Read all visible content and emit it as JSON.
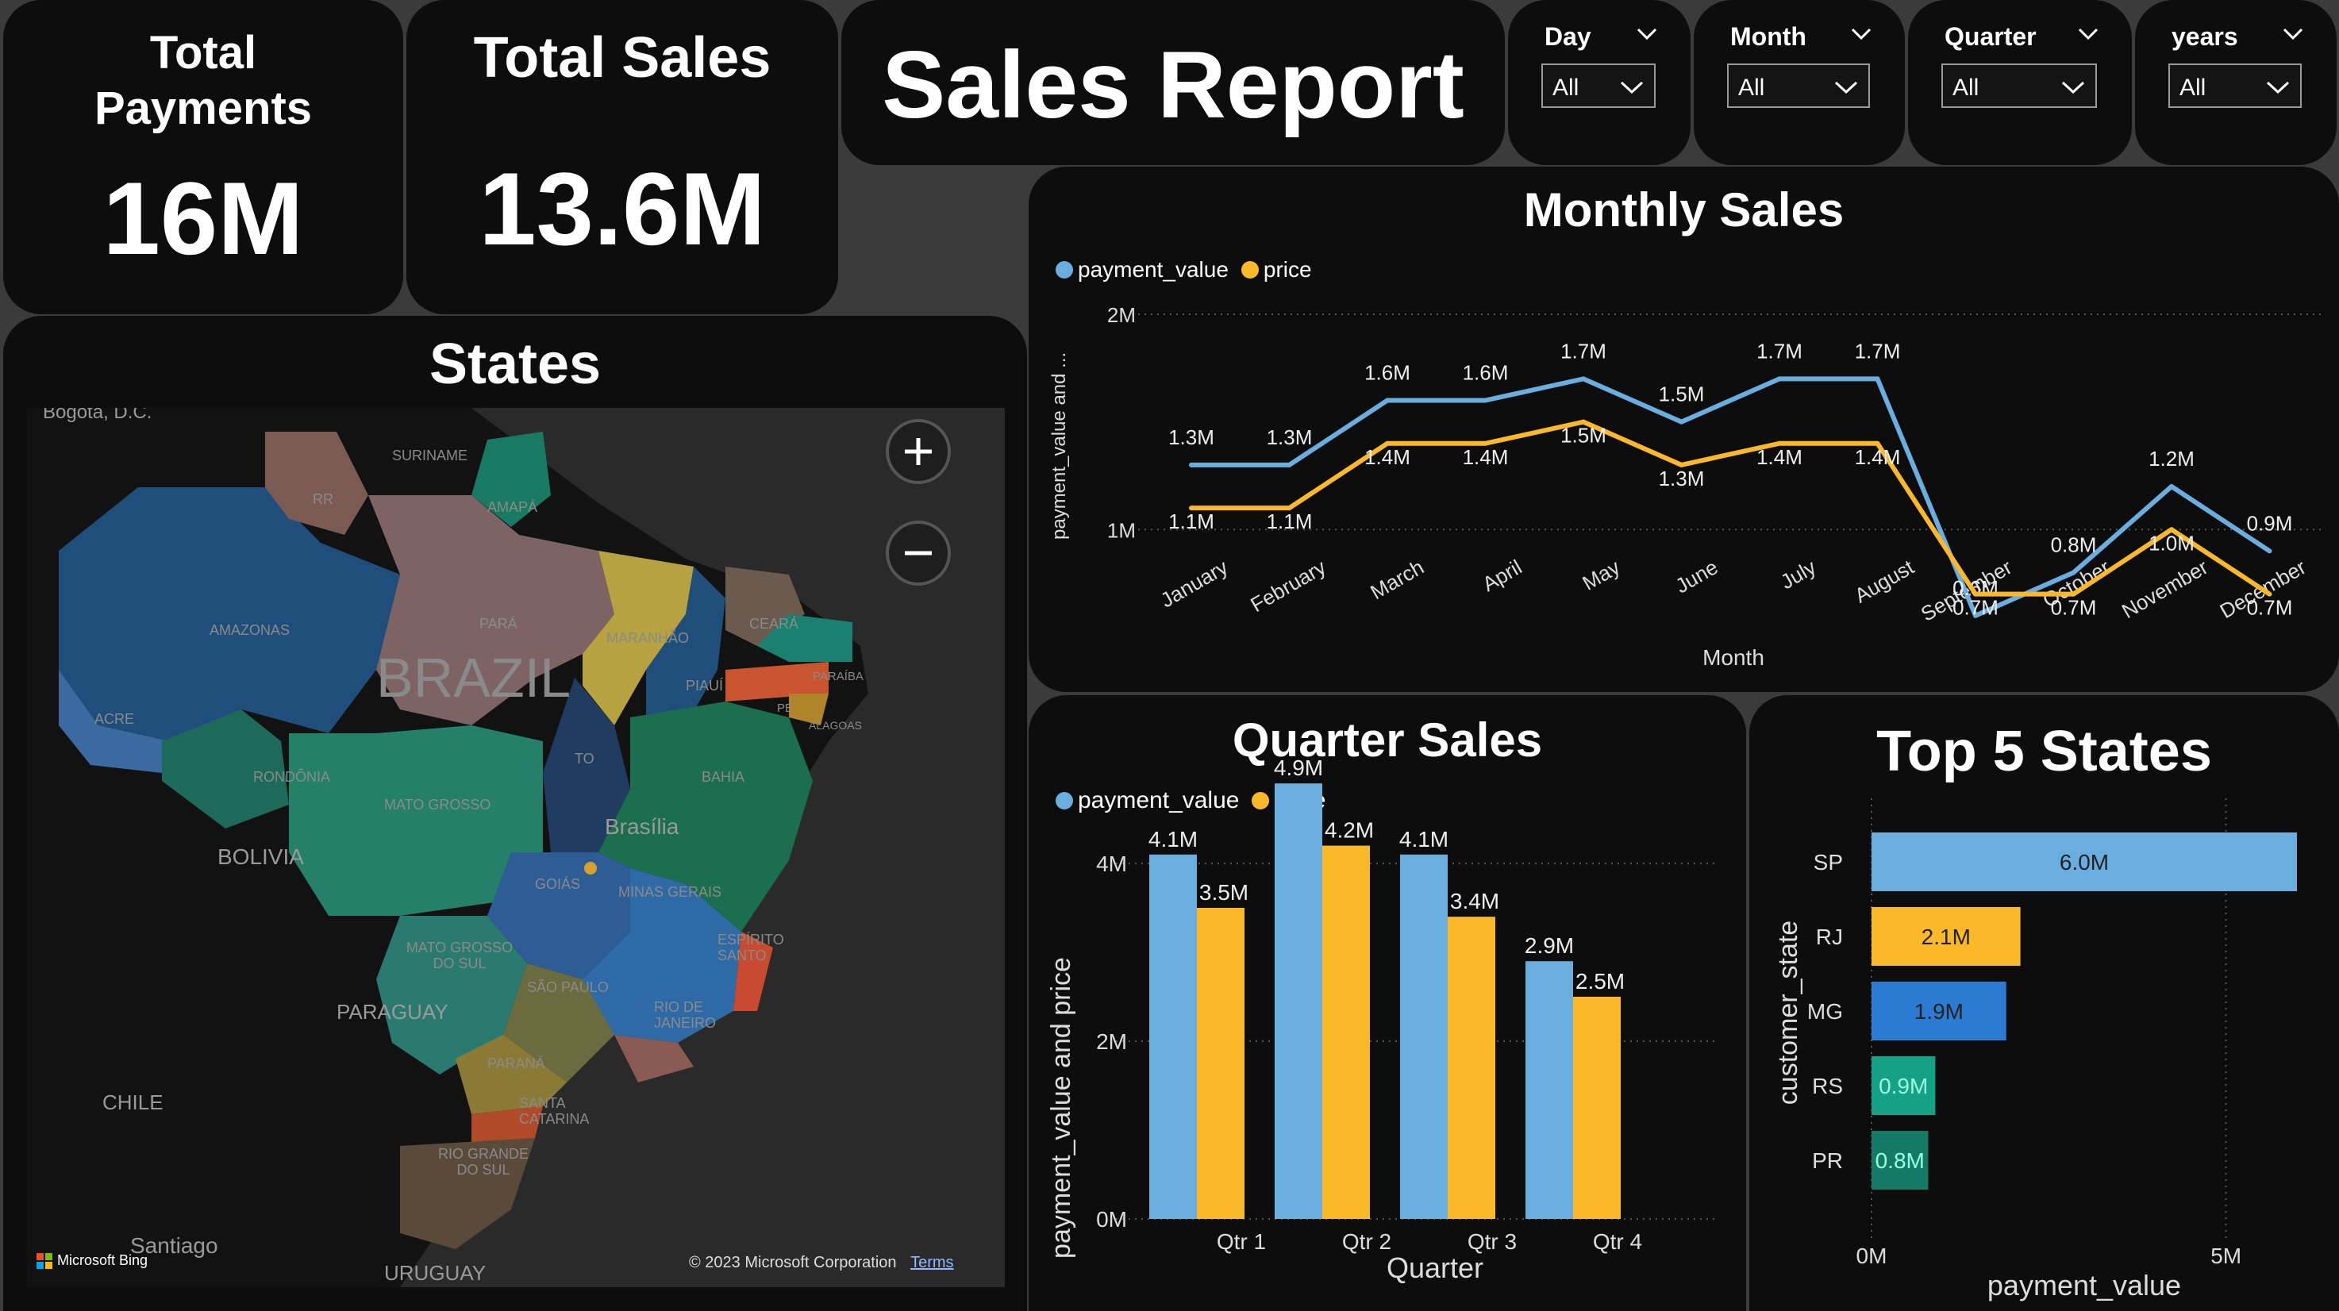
{
  "kpis": {
    "total_payments": {
      "label_line1": "Total",
      "label_line2": "Payments",
      "value": "16M"
    },
    "total_sales": {
      "label": "Total Sales",
      "value": "13.6M"
    }
  },
  "report_title": "Sales Report",
  "slicers": [
    {
      "label": "Day",
      "value": "All"
    },
    {
      "label": "Month",
      "value": "All"
    },
    {
      "label": "Quarter",
      "value": "All"
    },
    {
      "label": "years",
      "value": "All"
    }
  ],
  "states_map": {
    "title": "States",
    "country_label": "BRAZIL",
    "place_labels": [
      "Bogota, D.C.",
      "SURINAME",
      "RR",
      "AMAPÁ",
      "AMAZONAS",
      "PARÁ",
      "MARANHÃO",
      "CEARÁ",
      "ACRE",
      "PIAUÍ",
      "PARAÍBA",
      "PE",
      "ALAGOAS",
      "TO",
      "RONDÔNIA",
      "BAHIA",
      "MATO GROSSO",
      "Brasília",
      "BOLIVIA",
      "GOIÁS",
      "MINAS GERAIS",
      "ESPÍRITO SANTO",
      "MATO GROSSO DO SUL",
      "SÃO PAULO",
      "RIO DE JANEIRO",
      "PARAGUAY",
      "PARANÁ",
      "SANTA CATARINA",
      "CHILE",
      "RIO GRANDE DO SUL",
      "Santiago",
      "URUGUAY"
    ],
    "attribution": "© 2023 Microsoft Corporation",
    "terms_link": "Terms",
    "bing_logo": "Microsoft Bing",
    "colors": {
      "map_bg": "#2a2a2a"
    }
  },
  "colors": {
    "payment_value": "#6aaee0",
    "price": "#fbb829",
    "mg": "#2c7bd2",
    "rs": "#16a085",
    "pr": "#147a65"
  },
  "chart_data": [
    {
      "type": "line",
      "title": "Monthly Sales",
      "xlabel": "Month",
      "ylabel": "payment_value and ...",
      "categories": [
        "January",
        "February",
        "March",
        "April",
        "May",
        "June",
        "July",
        "August",
        "September",
        "October",
        "November",
        "December"
      ],
      "series": [
        {
          "name": "payment_value",
          "values": [
            1.3,
            1.3,
            1.6,
            1.6,
            1.7,
            1.5,
            1.7,
            1.7,
            0.6,
            0.8,
            1.2,
            0.9
          ],
          "labels": [
            "1.3M",
            "1.3M",
            "1.6M",
            "1.6M",
            "1.7M",
            "1.5M",
            "1.7M",
            "1.7M",
            "0.6M",
            "0.8M",
            "1.2M",
            "0.9M"
          ]
        },
        {
          "name": "price",
          "values": [
            1.1,
            1.1,
            1.4,
            1.4,
            1.5,
            1.3,
            1.4,
            1.4,
            0.7,
            0.7,
            1.0,
            0.7
          ],
          "labels": [
            "1.1M",
            "1.1M",
            "1.4M",
            "1.4M",
            "1.5M",
            "1.3M",
            "1.4M",
            "1.4M",
            "0.7M",
            "0.7M",
            "1.0M",
            "0.7M"
          ]
        }
      ],
      "yticks": [
        "1M",
        "2M"
      ],
      "ylim": [
        0.4,
        2.0
      ],
      "legend": "top-left",
      "grid": true
    },
    {
      "type": "bar",
      "title": "Quarter Sales",
      "xlabel": "Quarter",
      "ylabel": "payment_value and price",
      "categories": [
        "Qtr 1",
        "Qtr 2",
        "Qtr 3",
        "Qtr 4"
      ],
      "series": [
        {
          "name": "payment_value",
          "values": [
            4.1,
            4.9,
            4.1,
            2.9
          ],
          "labels": [
            "4.1M",
            "4.9M",
            "4.1M",
            "2.9M"
          ]
        },
        {
          "name": "price",
          "values": [
            3.5,
            4.2,
            3.4,
            2.5
          ],
          "labels": [
            "3.5M",
            "4.2M",
            "3.4M",
            "2.5M"
          ]
        }
      ],
      "yticks": [
        "0M",
        "2M",
        "4M"
      ],
      "ylim": [
        0,
        5
      ],
      "legend": "top-left",
      "grid": true
    },
    {
      "type": "bar",
      "orientation": "horizontal",
      "title": "Top 5 States",
      "xlabel": "payment_value",
      "ylabel": "customer_state",
      "categories": [
        "SP",
        "RJ",
        "MG",
        "RS",
        "PR"
      ],
      "values": [
        6.0,
        2.1,
        1.9,
        0.9,
        0.8
      ],
      "labels": [
        "6.0M",
        "2.1M",
        "1.9M",
        "0.9M",
        "0.8M"
      ],
      "xticks": [
        "0M",
        "5M"
      ],
      "xlim": [
        0,
        6.0
      ],
      "grid": true
    }
  ]
}
